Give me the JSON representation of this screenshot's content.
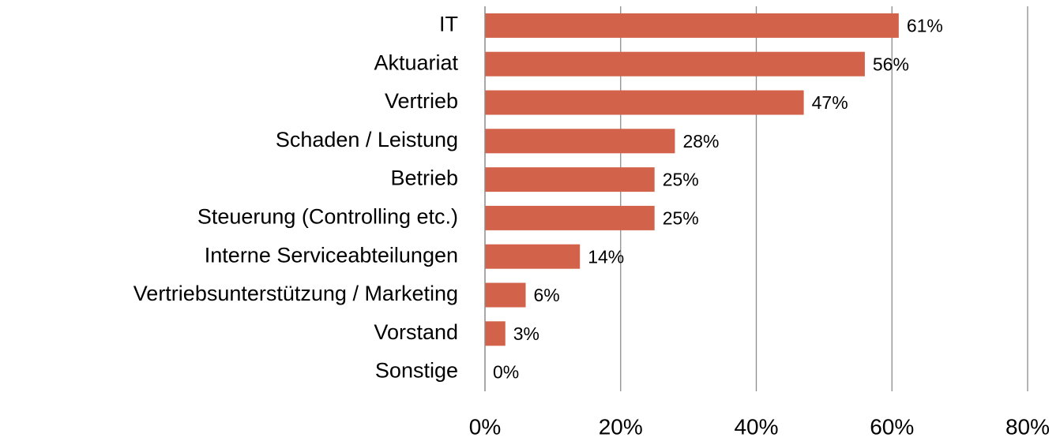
{
  "chart_data": {
    "type": "bar",
    "orientation": "horizontal",
    "categories": [
      "IT",
      "Aktuariat",
      "Vertrieb",
      "Schaden / Leistung",
      "Betrieb",
      "Steuerung (Controlling etc.)",
      "Interne Serviceabteilungen",
      "Vertriebsunterstützung / Marketing",
      "Vorstand",
      "Sonstige"
    ],
    "values": [
      61,
      56,
      47,
      28,
      25,
      25,
      14,
      6,
      3,
      0
    ],
    "value_labels": [
      "61%",
      "56%",
      "47%",
      "28%",
      "25%",
      "25%",
      "14%",
      "6%",
      "3%",
      "0%"
    ],
    "color": "#d2634a",
    "xlim": [
      0,
      80
    ],
    "xticks": [
      {
        "value": 0,
        "label": "0%"
      },
      {
        "value": 20,
        "label": "20%"
      },
      {
        "value": 40,
        "label": "40%"
      },
      {
        "value": 60,
        "label": "60%"
      },
      {
        "value": 80,
        "label": "80%"
      }
    ],
    "grid": true
  }
}
